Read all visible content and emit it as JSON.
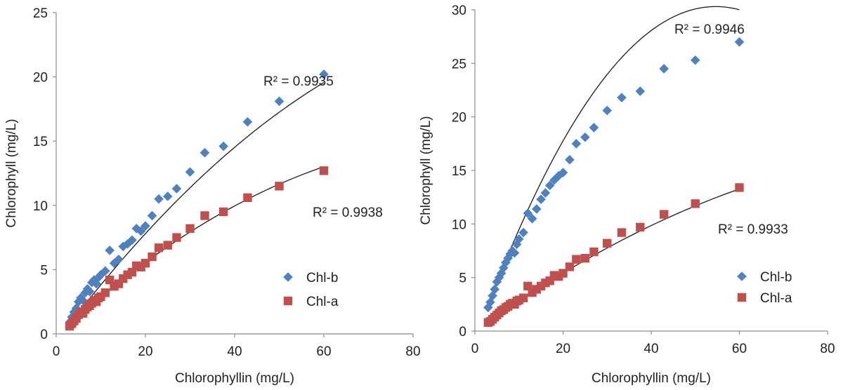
{
  "colors": {
    "chl_b": "#4f81bd",
    "chl_a": "#c0504d",
    "trend": "#1a1a1a",
    "axis": "#8c8c8c"
  },
  "chart_data": [
    {
      "type": "scatter",
      "title": "",
      "xlabel": "Chlorophyllin (mg/L)",
      "ylabel": "Chlorophyll (mg/L)",
      "xlim": [
        0,
        80
      ],
      "ylim": [
        0,
        25
      ],
      "xticks": [
        "0",
        "20",
        "40",
        "60",
        "80"
      ],
      "yticks": [
        "0",
        "5",
        "10",
        "15",
        "20",
        "25"
      ],
      "grid": false,
      "legend_position": "bottom-right",
      "series": [
        {
          "name": "Chl-b",
          "marker": "diamond",
          "color": "#4f81bd",
          "r2": "R² = 0.9935",
          "fit": [
            -0.0021,
            0.462,
            -0.6
          ],
          "fit_range": [
            3,
            60
          ],
          "x": [
            3,
            3.5,
            4,
            4.5,
            5,
            5.5,
            6,
            6.5,
            7,
            7.5,
            8,
            8.5,
            9,
            9.5,
            10,
            11,
            12,
            13,
            14,
            15,
            16,
            17,
            18,
            19,
            20,
            21.5,
            23,
            25,
            27,
            30,
            33.3,
            37.5,
            42.9,
            50,
            60
          ],
          "y": [
            0.9,
            1.3,
            1.7,
            2.0,
            2.5,
            2.8,
            2.6,
            3.2,
            3.5,
            3.3,
            4.0,
            4.2,
            3.9,
            4.4,
            4.6,
            4.9,
            6.5,
            5.5,
            5.8,
            6.8,
            7.0,
            7.3,
            8.2,
            8.0,
            8.4,
            9.2,
            10.5,
            10.7,
            11.3,
            12.6,
            14.1,
            14.6,
            16.5,
            18.1,
            20.2
          ]
        },
        {
          "name": "Chl-a",
          "marker": "square",
          "color": "#c0504d",
          "r2": "R² = 0.9938",
          "fit": [
            -0.00168,
            0.3206,
            -0.18
          ],
          "fit_range": [
            3,
            60
          ],
          "x": [
            3,
            3.5,
            4,
            4.5,
            5,
            5.5,
            6,
            6.5,
            7,
            7.5,
            8,
            8.5,
            9,
            9.5,
            10,
            11,
            12,
            13,
            14,
            15,
            16,
            17,
            18,
            19,
            20,
            21.5,
            23,
            25,
            27,
            30,
            33.3,
            37.5,
            42.9,
            50,
            60
          ],
          "y": [
            0.6,
            0.8,
            1.0,
            1.2,
            1.5,
            1.7,
            1.6,
            1.9,
            2.1,
            2.2,
            2.4,
            2.6,
            2.5,
            2.8,
            2.9,
            3.2,
            4.2,
            3.7,
            3.9,
            4.3,
            4.6,
            4.8,
            5.3,
            5.2,
            5.5,
            6.0,
            6.7,
            6.9,
            7.5,
            8.2,
            9.2,
            9.5,
            10.6,
            11.5,
            12.7
          ]
        }
      ]
    },
    {
      "type": "scatter",
      "title": "",
      "xlabel": "Chlorophyllin (mg/L)",
      "ylabel": "Chlorophyll (mg/L)",
      "xlim": [
        0,
        80
      ],
      "ylim": [
        0,
        30
      ],
      "xticks": [
        "0",
        "20",
        "40",
        "60",
        "80"
      ],
      "yticks": [
        "0",
        "5",
        "10",
        "15",
        "20",
        "25",
        "30"
      ],
      "grid": false,
      "legend_position": "bottom-right",
      "series": [
        {
          "name": "Chl-b",
          "marker": "diamond",
          "color": "#4f81bd",
          "r2": "R² = 0.9946",
          "fit": [
            -0.01045,
            1.1421,
            -0.9
          ],
          "fit_range": [
            3,
            60
          ],
          "x": [
            3,
            3.5,
            4,
            4.5,
            5,
            5.5,
            6,
            6.5,
            7,
            7.5,
            8,
            8.5,
            9,
            9.5,
            10,
            11,
            12,
            13,
            14,
            15,
            16,
            17,
            18,
            19,
            20,
            21.5,
            23,
            25,
            27,
            30,
            33.3,
            37.5,
            42.9,
            50,
            60
          ],
          "y": [
            2.2,
            2.7,
            3.3,
            3.9,
            4.6,
            5.0,
            5.4,
            5.9,
            6.4,
            6.8,
            7.2,
            7.5,
            7.3,
            8.1,
            8.6,
            9.2,
            11.0,
            10.5,
            11.4,
            12.3,
            12.9,
            13.6,
            14.1,
            14.5,
            14.8,
            16.0,
            17.5,
            18.1,
            19.0,
            20.6,
            21.8,
            22.4,
            24.5,
            25.3,
            27.0
          ]
        },
        {
          "name": "Chl-a",
          "marker": "square",
          "color": "#c0504d",
          "r2": "R² = 0.9933",
          "fit": [
            -0.00128,
            0.299,
            -0.06
          ],
          "fit_range": [
            3,
            60
          ],
          "x": [
            3,
            3.5,
            4,
            4.5,
            5,
            5.5,
            6,
            6.5,
            7,
            7.5,
            8,
            8.5,
            9,
            9.5,
            10,
            11,
            12,
            13,
            14,
            15,
            16,
            17,
            18,
            19,
            20,
            21.5,
            23,
            25,
            27,
            30,
            33.3,
            37.5,
            42.9,
            50,
            60
          ],
          "y": [
            0.8,
            0.9,
            1.1,
            1.3,
            1.5,
            1.7,
            1.9,
            2.0,
            2.2,
            2.3,
            2.5,
            2.6,
            2.5,
            2.8,
            2.9,
            3.1,
            4.2,
            3.6,
            3.9,
            4.2,
            4.5,
            4.7,
            5.2,
            5.1,
            5.4,
            6.0,
            6.7,
            6.8,
            7.4,
            8.2,
            9.2,
            9.7,
            10.9,
            11.9,
            13.4
          ]
        }
      ]
    }
  ]
}
